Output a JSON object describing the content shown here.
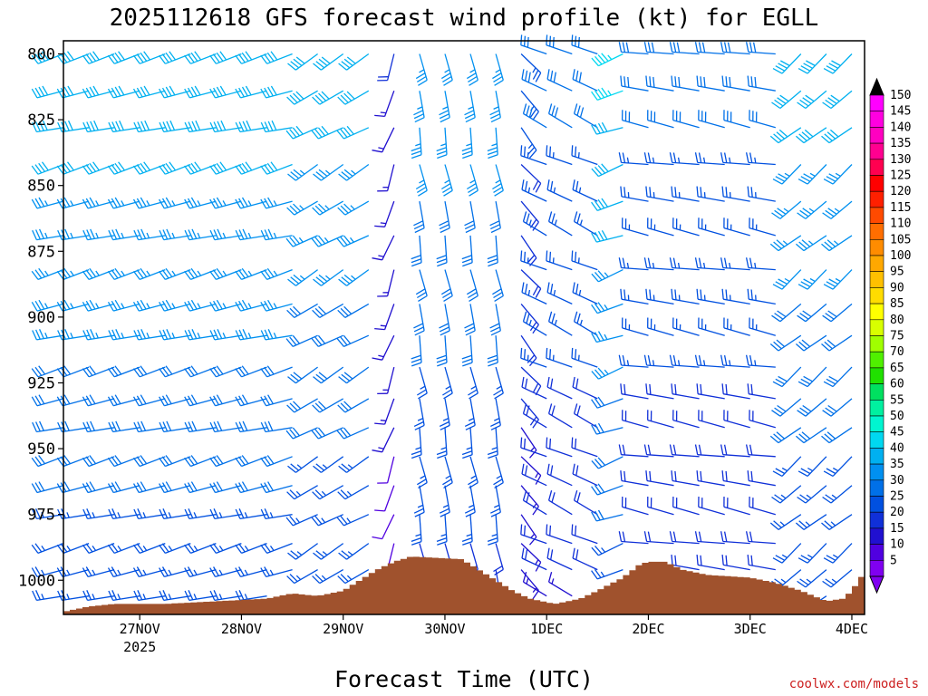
{
  "title": "2025112618 GFS forecast wind profile (kt) for EGLL",
  "xlabel": "Forecast Time (UTC)",
  "credit": "coolwx.com/models",
  "chart_data": {
    "type": "wind-barb-profile",
    "title": "2025112618 GFS forecast wind profile (kt) for EGLL",
    "xlabel": "Forecast Time (UTC)",
    "ylabel": "",
    "y_axis_inverted": true,
    "ylim": [
      1013,
      795
    ],
    "xlim_hours": [
      -12,
      177
    ],
    "x_ticks": [
      {
        "hour": 6,
        "label": "27NOV",
        "sublabel": "2025"
      },
      {
        "hour": 30,
        "label": "28NOV"
      },
      {
        "hour": 54,
        "label": "29NOV"
      },
      {
        "hour": 78,
        "label": "30NOV"
      },
      {
        "hour": 102,
        "label": "1DEC"
      },
      {
        "hour": 126,
        "label": "2DEC"
      },
      {
        "hour": 150,
        "label": "3DEC"
      },
      {
        "hour": 174,
        "label": "4DEC"
      }
    ],
    "y_ticks": [
      800,
      825,
      850,
      875,
      900,
      925,
      950,
      975,
      1000
    ],
    "barb_levels": [
      800,
      814,
      828,
      842,
      856,
      869,
      882,
      895,
      907,
      919,
      931,
      942,
      953,
      964,
      975,
      986,
      996,
      1006
    ],
    "barb_hours_step": 6,
    "wind_regime": [
      {
        "to_hour": 46,
        "dir": 255,
        "spd": 42
      },
      {
        "to_hour": 60,
        "dir": 240,
        "spd": 40
      },
      {
        "to_hour": 68,
        "dir": 200,
        "spd": 18
      },
      {
        "to_hour": 90,
        "dir": 170,
        "spd": 36
      },
      {
        "to_hour": 100,
        "dir": 140,
        "spd": 24
      },
      {
        "to_hour": 118,
        "dir": 295,
        "spd": 30
      },
      {
        "to_hour": 124,
        "dir": 250,
        "spd": 44
      },
      {
        "to_hour": 160,
        "dir": 280,
        "spd": 30
      },
      {
        "to_hour": 178,
        "dir": 230,
        "spd": 40
      }
    ],
    "surface_pressure": [
      [
        -12,
        1012
      ],
      [
        -6,
        1010
      ],
      [
        0,
        1009
      ],
      [
        12,
        1009
      ],
      [
        24,
        1008
      ],
      [
        36,
        1007
      ],
      [
        42,
        1005
      ],
      [
        48,
        1006
      ],
      [
        54,
        1004
      ],
      [
        58,
        1000
      ],
      [
        62,
        996
      ],
      [
        66,
        993
      ],
      [
        70,
        991
      ],
      [
        82,
        992
      ],
      [
        88,
        998
      ],
      [
        94,
        1004
      ],
      [
        98,
        1007
      ],
      [
        104,
        1009
      ],
      [
        110,
        1007
      ],
      [
        114,
        1004
      ],
      [
        120,
        999
      ],
      [
        124,
        994
      ],
      [
        126,
        993
      ],
      [
        130,
        993
      ],
      [
        134,
        996
      ],
      [
        140,
        998
      ],
      [
        150,
        999
      ],
      [
        156,
        1001
      ],
      [
        162,
        1004
      ],
      [
        168,
        1008
      ],
      [
        172,
        1007
      ],
      [
        174,
        1004
      ],
      [
        177,
        997
      ]
    ],
    "colorbar": {
      "labels": [
        150,
        145,
        140,
        135,
        130,
        125,
        120,
        115,
        110,
        105,
        100,
        95,
        90,
        85,
        80,
        75,
        70,
        65,
        60,
        55,
        50,
        45,
        40,
        35,
        30,
        25,
        20,
        15,
        10,
        5
      ],
      "colors": [
        "#ff00ff",
        "#ff00e0",
        "#ff00c0",
        "#ff0090",
        "#ff0050",
        "#ff0000",
        "#ff2000",
        "#ff4a00",
        "#ff6e00",
        "#ff8c00",
        "#ffa800",
        "#ffc000",
        "#ffdc00",
        "#ffff00",
        "#d8ff00",
        "#a0ff00",
        "#50f000",
        "#20e000",
        "#00e060",
        "#00f0a0",
        "#00f5d0",
        "#00d8f0",
        "#00b0f0",
        "#0090f0",
        "#0070e8",
        "#0050e0",
        "#1030d8",
        "#2010d0",
        "#5000e0",
        "#8000f0"
      ]
    }
  }
}
